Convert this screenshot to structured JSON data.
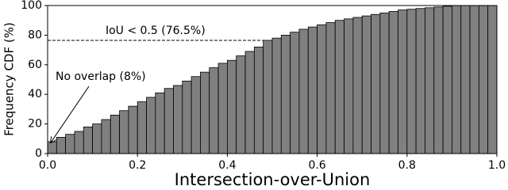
{
  "chart_data": {
    "type": "histogram",
    "x_label": "Intersection-over-Union",
    "y_label": "Frequency CDF (%)",
    "bins": [
      0,
      0.02,
      0.04,
      0.06,
      0.08,
      0.1,
      0.12,
      0.14,
      0.16,
      0.18,
      0.2,
      0.22,
      0.24,
      0.26,
      0.28,
      0.3,
      0.32,
      0.34,
      0.36,
      0.38,
      0.4,
      0.42,
      0.44,
      0.46,
      0.48,
      0.5,
      0.52,
      0.54,
      0.56,
      0.58,
      0.6,
      0.62,
      0.64,
      0.66,
      0.68,
      0.7,
      0.72,
      0.74,
      0.76,
      0.78,
      0.8,
      0.82,
      0.84,
      0.86,
      0.88,
      0.9,
      0.92,
      0.94,
      0.96,
      0.98,
      1.0
    ],
    "values": [
      8,
      11,
      13,
      15,
      18,
      20,
      23,
      26,
      29,
      32,
      35,
      38,
      41,
      44,
      46,
      49,
      52,
      55,
      58,
      61,
      63,
      66,
      69,
      72,
      76.5,
      78,
      80,
      82,
      84,
      85.5,
      87,
      88.5,
      90,
      91,
      92,
      93,
      94,
      95,
      96,
      97,
      97.5,
      98,
      98.5,
      99,
      99.5,
      100,
      100,
      100,
      100,
      100
    ],
    "color": "#808080",
    "xlim": [
      0,
      1
    ],
    "ylim": [
      0,
      100
    ],
    "xticks": [
      {
        "value": 0,
        "label": "0.0"
      },
      {
        "value": 0.2,
        "label": "0.2"
      },
      {
        "value": 0.4,
        "label": "0.4"
      },
      {
        "value": 0.6,
        "label": "0.6"
      },
      {
        "value": 0.8,
        "label": "0.8"
      },
      {
        "value": 1,
        "label": "1.0"
      }
    ],
    "yticks": [
      0,
      20,
      40,
      60,
      80,
      100
    ],
    "reference_line": {
      "value": 76.5,
      "label": "IoU < 0.5 (76.5%)"
    },
    "arrow_annotation": {
      "text": "No overlap (8%)"
    }
  }
}
